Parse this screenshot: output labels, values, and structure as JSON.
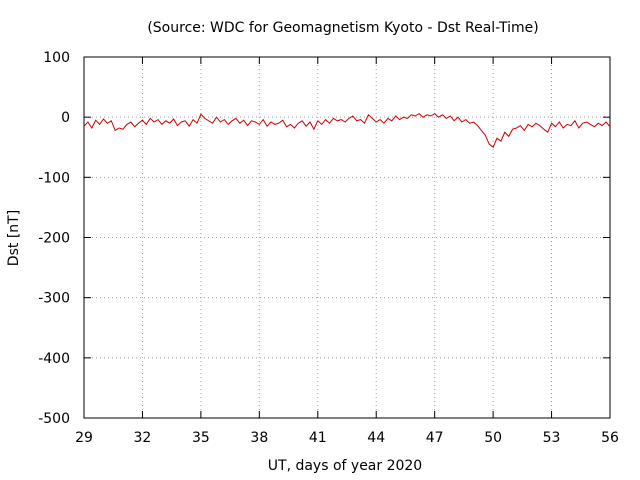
{
  "chart_data": {
    "type": "line",
    "title": "(Source: WDC for Geomagnetism Kyoto - Dst Real-Time)",
    "xlabel": "UT, days of year 2020",
    "ylabel": "Dst [nT]",
    "xlim": [
      29,
      56
    ],
    "ylim": [
      -500,
      100
    ],
    "xticks": [
      29,
      32,
      35,
      38,
      41,
      44,
      47,
      50,
      53,
      56
    ],
    "yticks": [
      -500,
      -400,
      -300,
      -200,
      -100,
      0,
      100
    ],
    "grid": true,
    "line_color": "#cc0000",
    "series": [
      {
        "x": [
          29.0,
          29.2,
          29.4,
          29.6,
          29.8,
          30.0,
          30.2,
          30.4,
          30.6,
          30.8,
          31.0,
          31.2,
          31.4,
          31.6,
          31.8,
          32.0,
          32.2,
          32.4,
          32.6,
          32.8,
          33.0,
          33.2,
          33.4,
          33.6,
          33.8,
          34.0,
          34.2,
          34.4,
          34.6,
          34.8,
          35.0,
          35.2,
          35.4,
          35.6,
          35.8,
          36.0,
          36.2,
          36.4,
          36.6,
          36.8,
          37.0,
          37.2,
          37.4,
          37.6,
          37.8,
          38.0,
          38.2,
          38.4,
          38.6,
          38.8,
          39.0,
          39.2,
          39.4,
          39.6,
          39.8,
          40.0,
          40.2,
          40.4,
          40.6,
          40.8,
          41.0,
          41.2,
          41.4,
          41.6,
          41.8,
          42.0,
          42.2,
          42.4,
          42.6,
          42.8,
          43.0,
          43.2,
          43.4,
          43.6,
          43.8,
          44.0,
          44.2,
          44.4,
          44.6,
          44.8,
          45.0,
          45.2,
          45.4,
          45.6,
          45.8,
          46.0,
          46.2,
          46.4,
          46.6,
          46.8,
          47.0,
          47.2,
          47.4,
          47.6,
          47.8,
          48.0,
          48.2,
          48.4,
          48.6,
          48.8,
          49.0,
          49.2,
          49.4,
          49.6,
          49.8,
          50.0,
          50.2,
          50.4,
          50.6,
          50.8,
          51.0,
          51.2,
          51.4,
          51.6,
          51.8,
          52.0,
          52.2,
          52.4,
          52.6,
          52.8,
          53.0,
          53.2,
          53.4,
          53.6,
          53.8,
          54.0,
          54.2,
          54.4,
          54.6,
          54.8,
          55.0,
          55.2,
          55.4,
          55.6,
          55.8,
          56.0
        ],
        "y": [
          -15,
          -8,
          -18,
          -5,
          -12,
          -3,
          -10,
          -6,
          -22,
          -18,
          -20,
          -12,
          -8,
          -16,
          -10,
          -5,
          -12,
          -2,
          -8,
          -4,
          -12,
          -6,
          -10,
          -3,
          -14,
          -8,
          -6,
          -15,
          -4,
          -10,
          5,
          -2,
          -6,
          -10,
          0,
          -8,
          -4,
          -12,
          -6,
          -2,
          -10,
          -5,
          -14,
          -6,
          -8,
          -12,
          -4,
          -15,
          -8,
          -12,
          -10,
          -5,
          -16,
          -12,
          -18,
          -10,
          -6,
          -15,
          -8,
          -20,
          -6,
          -12,
          -4,
          -10,
          -2,
          -6,
          -4,
          -8,
          -2,
          2,
          -6,
          -4,
          -10,
          4,
          -2,
          -8,
          -4,
          -10,
          -2,
          -6,
          2,
          -4,
          0,
          -2,
          4,
          2,
          6,
          0,
          4,
          2,
          6,
          0,
          4,
          -2,
          2,
          -6,
          0,
          -8,
          -4,
          -10,
          -8,
          -14,
          -22,
          -30,
          -45,
          -50,
          -35,
          -40,
          -25,
          -32,
          -20,
          -18,
          -14,
          -22,
          -12,
          -16,
          -10,
          -14,
          -20,
          -25,
          -10,
          -16,
          -8,
          -18,
          -12,
          -14,
          -6,
          -18,
          -10,
          -8,
          -12,
          -16,
          -10,
          -14,
          -8,
          -16
        ]
      }
    ]
  }
}
